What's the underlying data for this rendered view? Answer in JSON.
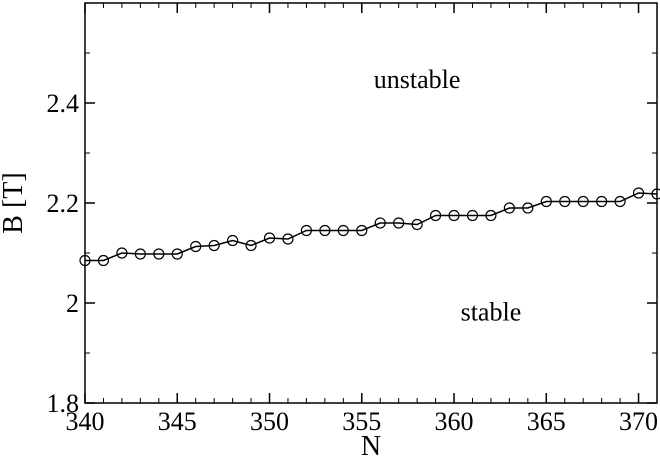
{
  "chart_data": {
    "type": "line",
    "xlabel": "N",
    "ylabel": "B [T]",
    "xlim": [
      340,
      371
    ],
    "ylim": [
      1.8,
      2.6
    ],
    "x_ticks": [
      340,
      345,
      350,
      355,
      360,
      365,
      370
    ],
    "y_ticks": [
      1.8,
      2.0,
      2.2,
      2.4
    ],
    "x_tick_labels": [
      "340",
      "345",
      "350",
      "355",
      "360",
      "365",
      "370"
    ],
    "y_tick_labels": [
      "1.8",
      "2",
      "2.2",
      "2.4"
    ],
    "grid": false,
    "marker": "open-circle",
    "series": [
      {
        "x": [
          340,
          341,
          342,
          343,
          344,
          345,
          346,
          347,
          348,
          349,
          350,
          351,
          352,
          353,
          354,
          355,
          356,
          357,
          358,
          359,
          360,
          361,
          362,
          363,
          364,
          365,
          366,
          367,
          368,
          369,
          370,
          371
        ],
        "y": [
          2.085,
          2.085,
          2.1,
          2.098,
          2.098,
          2.098,
          2.113,
          2.115,
          2.125,
          2.115,
          2.13,
          2.128,
          2.145,
          2.145,
          2.145,
          2.145,
          2.16,
          2.16,
          2.157,
          2.175,
          2.175,
          2.175,
          2.175,
          2.19,
          2.19,
          2.203,
          2.203,
          2.203,
          2.203,
          2.203,
          2.22,
          2.218
        ]
      }
    ],
    "annotations": [
      {
        "text": "unstable",
        "x": 358,
        "y": 2.43
      },
      {
        "text": "stable",
        "x": 362,
        "y": 1.965
      }
    ]
  }
}
